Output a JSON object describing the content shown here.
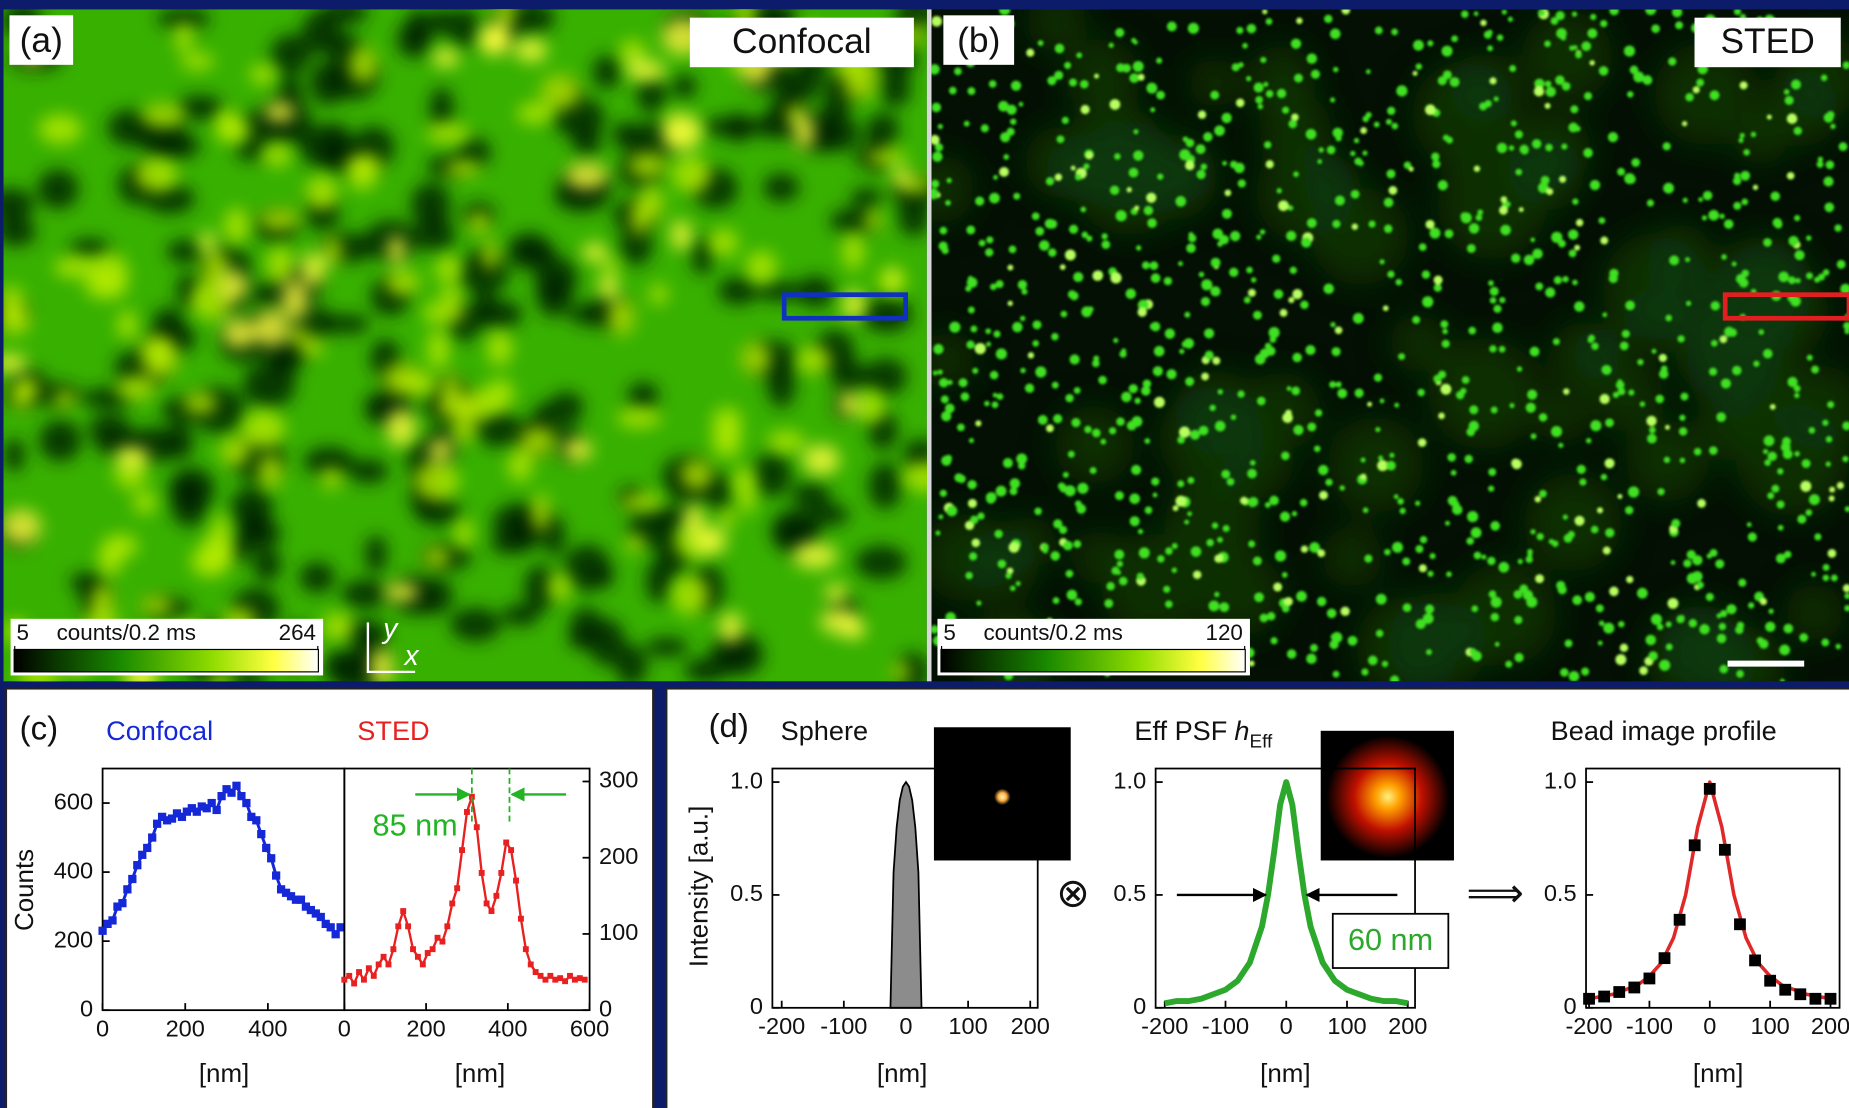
{
  "images": [
    {
      "label": "(a)",
      "title": "Confocal",
      "colorbar": {
        "min": 5,
        "unit": "counts/0.2 ms",
        "max": 264
      },
      "axes": {
        "y": "y",
        "x": "x"
      }
    },
    {
      "label": "(b)",
      "title": "STED",
      "colorbar": {
        "min": 5,
        "unit": "counts/0.2 ms",
        "max": 120
      }
    }
  ],
  "chart_data": [
    {
      "type": "line",
      "panel": "(c)",
      "title": "Confocal",
      "ylabel": "Counts",
      "xlabel": "[nm]",
      "xlim": [
        0,
        585
      ],
      "xticks": [
        0,
        200,
        400
      ],
      "ylim": [
        0,
        700
      ],
      "yticks": [
        0,
        200,
        400,
        600
      ],
      "series": [
        {
          "color": "#1428d8",
          "marker": "square",
          "x": [
            0,
            12,
            24,
            36,
            48,
            60,
            72,
            84,
            96,
            108,
            120,
            132,
            144,
            156,
            168,
            180,
            192,
            204,
            216,
            228,
            240,
            252,
            264,
            276,
            288,
            300,
            312,
            324,
            336,
            348,
            360,
            372,
            384,
            396,
            408,
            420,
            432,
            444,
            456,
            468,
            480,
            492,
            504,
            516,
            528,
            540,
            552,
            564,
            576
          ],
          "values": [
            230,
            250,
            260,
            300,
            310,
            350,
            380,
            420,
            450,
            470,
            500,
            540,
            560,
            550,
            555,
            570,
            560,
            575,
            585,
            575,
            590,
            585,
            600,
            580,
            620,
            640,
            630,
            650,
            620,
            600,
            560,
            550,
            510,
            470,
            440,
            390,
            350,
            340,
            330,
            320,
            320,
            300,
            290,
            280,
            270,
            250,
            240,
            220,
            240
          ]
        }
      ]
    },
    {
      "type": "line",
      "title": "STED",
      "xlabel": "[nm]",
      "yaxis": "right",
      "xlim": [
        0,
        600
      ],
      "xticks": [
        0,
        200,
        400,
        600
      ],
      "ylim": [
        0,
        317
      ],
      "yticks": [
        0,
        100,
        200,
        300
      ],
      "series": [
        {
          "color": "#e82020",
          "marker": "square",
          "x": [
            0,
            12,
            24,
            36,
            48,
            60,
            72,
            84,
            96,
            108,
            120,
            132,
            144,
            156,
            168,
            180,
            192,
            204,
            216,
            228,
            240,
            252,
            264,
            276,
            288,
            300,
            312,
            324,
            336,
            348,
            360,
            372,
            384,
            396,
            408,
            420,
            432,
            444,
            456,
            468,
            480,
            492,
            504,
            516,
            528,
            540,
            552,
            564,
            576,
            588
          ],
          "values": [
            40,
            45,
            35,
            50,
            40,
            55,
            45,
            60,
            70,
            60,
            80,
            110,
            130,
            110,
            80,
            70,
            60,
            75,
            80,
            95,
            90,
            110,
            140,
            160,
            210,
            260,
            280,
            240,
            180,
            140,
            130,
            150,
            180,
            220,
            210,
            170,
            120,
            80,
            60,
            50,
            45,
            40,
            45,
            40,
            42,
            38,
            45,
            40,
            42,
            40
          ]
        }
      ],
      "annotation": {
        "text": "85 nm",
        "color": "#22b422",
        "x": [
          312,
          404
        ]
      }
    },
    {
      "type": "area",
      "panel": "(d)",
      "title": "Sphere",
      "ylabel": "Intensity [a.u.]",
      "xlabel": "[nm]",
      "xlim": [
        -215,
        212
      ],
      "xticks": [
        -200,
        -100,
        0,
        100,
        200
      ],
      "ylim": [
        0,
        1.06
      ],
      "yticks": [
        0,
        0.5,
        {
          "value": 1,
          "label": "1.0"
        }
      ],
      "series": [
        {
          "color": "#8c8c8c",
          "x": [
            -25,
            -20,
            -15,
            -10,
            -5,
            0,
            5,
            10,
            15,
            20,
            25
          ],
          "values": [
            0,
            0.6,
            0.8,
            0.92,
            0.98,
            1,
            0.98,
            0.92,
            0.8,
            0.6,
            0
          ]
        }
      ]
    },
    {
      "type": "line",
      "operator": "⊗",
      "title": "Eff PSF",
      "title_symbol": "h",
      "title_subscript": "Eff",
      "xlabel": "[nm]",
      "xlim": [
        -215,
        212
      ],
      "xticks": [
        -200,
        -100,
        0,
        100,
        200
      ],
      "ylim": [
        0,
        1.06
      ],
      "yticks": [
        0,
        0.5,
        {
          "value": 1,
          "label": "1.0"
        }
      ],
      "series": [
        {
          "color": "#2ca82c",
          "x": [
            -200,
            -180,
            -160,
            -140,
            -120,
            -100,
            -80,
            -60,
            -40,
            -30,
            -20,
            -10,
            0,
            10,
            20,
            30,
            40,
            60,
            80,
            100,
            120,
            140,
            160,
            180,
            200
          ],
          "values": [
            0.02,
            0.03,
            0.03,
            0.04,
            0.06,
            0.08,
            0.12,
            0.2,
            0.36,
            0.5,
            0.69,
            0.9,
            1,
            0.9,
            0.69,
            0.5,
            0.36,
            0.2,
            0.12,
            0.08,
            0.06,
            0.04,
            0.03,
            0.03,
            0.02
          ]
        }
      ],
      "annotation": {
        "text": "60 nm",
        "color": "#2ca82c",
        "x": [
          -30,
          30
        ],
        "y": 0.5
      }
    },
    {
      "type": "line",
      "operator": "⟹",
      "title": "Bead image profile",
      "xlabel": "[nm]",
      "xlim": [
        -205,
        215
      ],
      "xticks": [
        -200,
        -100,
        0,
        100,
        200
      ],
      "ylim": [
        0,
        1.06
      ],
      "yticks": [
        0,
        0.5,
        {
          "value": 1,
          "label": "1.0"
        }
      ],
      "series": [
        {
          "color": "#e02828",
          "x": [
            -200,
            -180,
            -160,
            -140,
            -120,
            -100,
            -80,
            -60,
            -40,
            -20,
            0,
            20,
            40,
            60,
            80,
            100,
            120,
            140,
            160,
            180,
            200
          ],
          "values": [
            0.04,
            0.05,
            0.06,
            0.08,
            0.1,
            0.14,
            0.2,
            0.31,
            0.5,
            0.8,
            1,
            0.8,
            0.5,
            0.31,
            0.2,
            0.14,
            0.1,
            0.08,
            0.06,
            0.05,
            0.04
          ]
        },
        {
          "color": "#000000",
          "marker": "square",
          "line": false,
          "x": [
            -200,
            -175,
            -150,
            -125,
            -100,
            -75,
            -50,
            -25,
            0,
            25,
            50,
            75,
            100,
            125,
            150,
            175,
            200
          ],
          "values": [
            0.04,
            0.05,
            0.07,
            0.09,
            0.13,
            0.22,
            0.39,
            0.72,
            0.97,
            0.7,
            0.37,
            0.21,
            0.12,
            0.08,
            0.06,
            0.04,
            0.04
          ]
        }
      ]
    }
  ]
}
